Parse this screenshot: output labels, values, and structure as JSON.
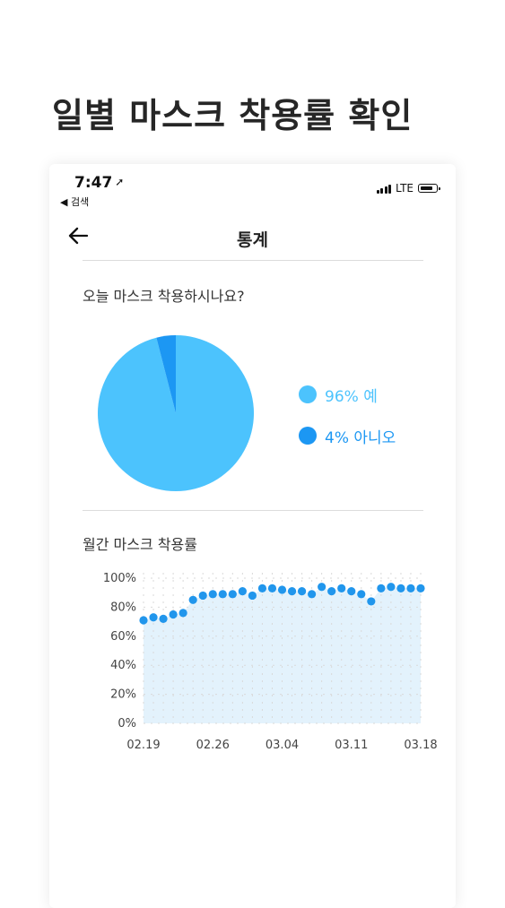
{
  "promo": {
    "title": "일별 마스크 착용률 확인"
  },
  "status_bar": {
    "time": "7:47",
    "back_label": "◀ 검색",
    "network": "LTE"
  },
  "nav": {
    "title": "통계"
  },
  "today_section": {
    "title": "오늘 마스크 착용하시나요?"
  },
  "monthly_section": {
    "title": "월간 마스크 착용률"
  },
  "icons": {
    "back": "arrow-left-icon",
    "location": "location-arrow-icon",
    "signal": "signal-bars-icon",
    "battery": "battery-icon"
  },
  "colors": {
    "yes": "#4cc3fd",
    "no": "#1c97f3",
    "line_point": "#2196ec",
    "line_fill": "#e3f2fc"
  },
  "chart_data": [
    {
      "type": "pie",
      "title": "",
      "slices": [
        {
          "label": "96% 예",
          "value": 96,
          "color": "#4cc3fd"
        },
        {
          "label": "4% 아니오",
          "value": 4,
          "color": "#1c97f3"
        }
      ],
      "legend": "right"
    },
    {
      "type": "line",
      "title": "",
      "xlabel": "",
      "ylabel": "",
      "ylim": [
        0,
        100
      ],
      "yticks": [
        "0%",
        "20%",
        "40%",
        "60%",
        "80%",
        "100%"
      ],
      "xticks": [
        "02.19",
        "02.26",
        "03.04",
        "03.11",
        "03.18"
      ],
      "x": [
        "02.19",
        "02.20",
        "02.21",
        "02.22",
        "02.23",
        "02.24",
        "02.25",
        "02.26",
        "02.27",
        "02.28",
        "02.29",
        "03.01",
        "03.02",
        "03.03",
        "03.04",
        "03.05",
        "03.06",
        "03.07",
        "03.08",
        "03.09",
        "03.10",
        "03.11",
        "03.12",
        "03.13",
        "03.14",
        "03.15",
        "03.16",
        "03.17",
        "03.18"
      ],
      "values": [
        71,
        73,
        72,
        75,
        76,
        85,
        88,
        89,
        89,
        89,
        91,
        88,
        93,
        93,
        92,
        91,
        91,
        89,
        94,
        91,
        93,
        91,
        89,
        84,
        93,
        94,
        93,
        93,
        93
      ],
      "grid": true
    }
  ]
}
